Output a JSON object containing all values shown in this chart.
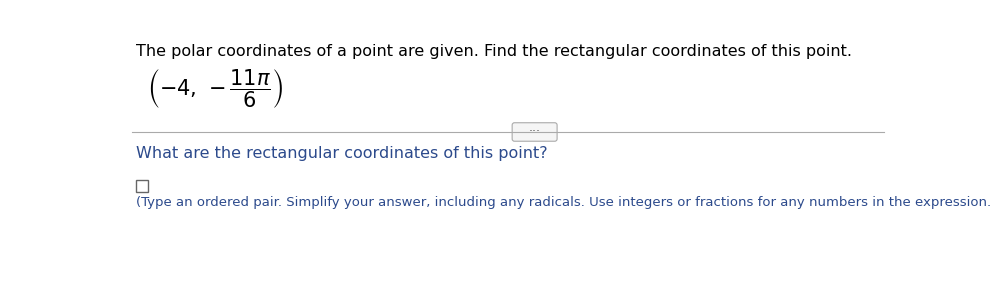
{
  "title_text": "The polar coordinates of a point are given. Find the rectangular coordinates of this point.",
  "question_text": "What are the rectangular coordinates of this point?",
  "instruction_text": "(Type an ordered pair. Simplify your answer, including any radicals. Use integers or fractions for any numbers in the expression.)",
  "bg_color": "#ffffff",
  "text_color": "#000000",
  "blue_color": "#2c4a8c",
  "gray_color": "#aaaaaa",
  "title_fontsize": 11.5,
  "body_fontsize": 11.5,
  "instr_fontsize": 9.5
}
